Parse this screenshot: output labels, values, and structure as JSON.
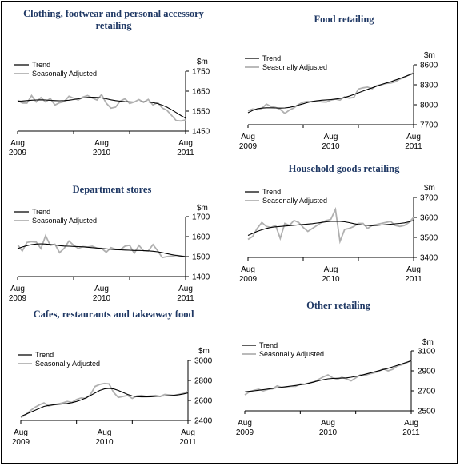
{
  "legend": {
    "trend": "Trend",
    "sa": "Seasonally Adjusted"
  },
  "colors": {
    "trend": "#000000",
    "sa": "#b0b0b0",
    "title": "#1f3864"
  },
  "chart_data": [
    {
      "type": "line",
      "title_lines": [
        "Clothing, footwear and personal accessory",
        "retailing"
      ],
      "unit": "$m",
      "ylim": [
        1450,
        1750
      ],
      "yticks": [
        1450,
        1550,
        1650,
        1750
      ],
      "xticks": [
        {
          "line1": "Aug",
          "line2": "2009"
        },
        {
          "line1": "Aug",
          "line2": "2010"
        },
        {
          "line1": "Aug",
          "line2": "2011"
        }
      ],
      "series": [
        {
          "name": "Trend",
          "values": [
            1600,
            1601,
            1603,
            1605,
            1606,
            1607,
            1606,
            1604,
            1603,
            1602,
            1603,
            1605,
            1608,
            1612,
            1616,
            1619,
            1620,
            1619,
            1616,
            1612,
            1607,
            1603,
            1600,
            1598,
            1597,
            1596,
            1596,
            1597,
            1596,
            1593,
            1588,
            1580,
            1570,
            1557,
            1543,
            1528,
            1515
          ]
        },
        {
          "name": "Seasonally Adjusted",
          "values": [
            1605,
            1591,
            1590,
            1628,
            1596,
            1618,
            1596,
            1614,
            1581,
            1592,
            1598,
            1625,
            1615,
            1606,
            1621,
            1628,
            1616,
            1606,
            1633,
            1590,
            1565,
            1570,
            1601,
            1612,
            1589,
            1596,
            1608,
            1594,
            1609,
            1581,
            1593,
            1566,
            1554,
            1529,
            1503,
            1501,
            1506
          ]
        }
      ]
    },
    {
      "type": "line",
      "title_lines": [
        "Food retailing"
      ],
      "unit": "$m",
      "ylim": [
        7700,
        8600
      ],
      "yticks": [
        7700,
        8000,
        8300,
        8600
      ],
      "xticks": [
        {
          "line1": "Aug",
          "line2": "2009"
        },
        {
          "line1": "Aug",
          "line2": "2010"
        },
        {
          "line1": "Aug",
          "line2": "2011"
        }
      ],
      "series": [
        {
          "name": "Trend",
          "values": [
            7880,
            7915,
            7940,
            7950,
            7955,
            7955,
            7952,
            7950,
            7952,
            7960,
            7975,
            7995,
            8015,
            8035,
            8050,
            8060,
            8068,
            8073,
            8078,
            8085,
            8095,
            8110,
            8130,
            8155,
            8180,
            8205,
            8230,
            8255,
            8280,
            8305,
            8325,
            8345,
            8370,
            8395,
            8420,
            8445,
            8470
          ]
        },
        {
          "name": "Seasonally Adjusted",
          "values": [
            7910,
            7935,
            7925,
            7945,
            8010,
            7975,
            7960,
            7930,
            7870,
            7920,
            7955,
            8005,
            8040,
            8050,
            8045,
            8060,
            8045,
            8040,
            8070,
            8085,
            8070,
            8120,
            8100,
            8110,
            8235,
            8255,
            8265,
            8240,
            8290,
            8300,
            8320,
            8325,
            8345,
            8385,
            8410,
            8450,
            8480
          ]
        }
      ]
    },
    {
      "type": "line",
      "title_lines": [
        "Department stores"
      ],
      "unit": "$m",
      "ylim": [
        1400,
        1700
      ],
      "yticks": [
        1400,
        1500,
        1600,
        1700
      ],
      "xticks": [
        {
          "line1": "Aug",
          "line2": "2009"
        },
        {
          "line1": "Aug",
          "line2": "2010"
        },
        {
          "line1": "Aug",
          "line2": "2011"
        }
      ],
      "series": [
        {
          "name": "Trend",
          "values": [
            1540,
            1548,
            1555,
            1560,
            1563,
            1564,
            1563,
            1561,
            1558,
            1555,
            1553,
            1552,
            1551,
            1550,
            1549,
            1547,
            1545,
            1543,
            1541,
            1539,
            1537,
            1535,
            1534,
            1533,
            1532,
            1531,
            1531,
            1530,
            1529,
            1527,
            1524,
            1520,
            1515,
            1510,
            1506,
            1503,
            1500
          ]
        },
        {
          "name": "Seasonally Adjusted",
          "values": [
            1560,
            1528,
            1571,
            1575,
            1573,
            1540,
            1605,
            1556,
            1562,
            1520,
            1542,
            1578,
            1557,
            1541,
            1550,
            1548,
            1552,
            1542,
            1541,
            1522,
            1545,
            1537,
            1535,
            1552,
            1557,
            1517,
            1556,
            1529,
            1528,
            1560,
            1530,
            1495,
            1500,
            1503,
            1506,
            1503,
            1500
          ]
        }
      ]
    },
    {
      "type": "line",
      "title_lines": [
        "Household goods retailing"
      ],
      "unit": "$m",
      "ylim": [
        3400,
        3700
      ],
      "yticks": [
        3400,
        3500,
        3600,
        3700
      ],
      "xticks": [
        {
          "line1": "Aug",
          "line2": "2009"
        },
        {
          "line1": "Aug",
          "line2": "2010"
        },
        {
          "line1": "Aug",
          "line2": "2011"
        }
      ],
      "series": [
        {
          "name": "Trend",
          "values": [
            3510,
            3520,
            3530,
            3538,
            3545,
            3550,
            3553,
            3555,
            3557,
            3559,
            3561,
            3563,
            3565,
            3567,
            3569,
            3572,
            3575,
            3578,
            3580,
            3581,
            3580,
            3578,
            3574,
            3569,
            3565,
            3562,
            3560,
            3559,
            3560,
            3562,
            3564,
            3566,
            3568,
            3570,
            3573,
            3578,
            3585
          ]
        },
        {
          "name": "Seasonally Adjusted",
          "values": [
            3490,
            3505,
            3545,
            3575,
            3555,
            3550,
            3560,
            3495,
            3570,
            3560,
            3585,
            3575,
            3550,
            3530,
            3545,
            3560,
            3575,
            3585,
            3590,
            3640,
            3480,
            3540,
            3545,
            3555,
            3570,
            3570,
            3545,
            3560,
            3565,
            3570,
            3575,
            3580,
            3560,
            3555,
            3560,
            3575,
            3600
          ]
        }
      ]
    },
    {
      "type": "line",
      "title_lines": [
        "Cafes, restaurants and takeaway food"
      ],
      "unit": "$m",
      "ylim": [
        2400,
        3000
      ],
      "yticks": [
        2400,
        2600,
        2800,
        3000
      ],
      "xticks": [
        {
          "line1": "Aug",
          "line2": "2009"
        },
        {
          "line1": "Aug",
          "line2": "2010"
        },
        {
          "line1": "Aug",
          "line2": "2011"
        }
      ],
      "series": [
        {
          "name": "Trend",
          "values": [
            2440,
            2460,
            2480,
            2500,
            2520,
            2540,
            2550,
            2556,
            2560,
            2565,
            2570,
            2578,
            2590,
            2605,
            2625,
            2650,
            2675,
            2700,
            2715,
            2720,
            2715,
            2700,
            2680,
            2660,
            2645,
            2638,
            2635,
            2635,
            2637,
            2640,
            2643,
            2645,
            2648,
            2652,
            2657,
            2665,
            2675
          ]
        },
        {
          "name": "Seasonally Adjusted",
          "values": [
            2430,
            2455,
            2495,
            2530,
            2555,
            2575,
            2545,
            2555,
            2565,
            2575,
            2590,
            2580,
            2610,
            2625,
            2620,
            2660,
            2740,
            2760,
            2770,
            2765,
            2680,
            2630,
            2640,
            2650,
            2620,
            2645,
            2650,
            2640,
            2645,
            2650,
            2640,
            2660,
            2655,
            2650,
            2660,
            2670,
            2690
          ]
        }
      ]
    },
    {
      "type": "line",
      "title_lines": [
        "Other retailing"
      ],
      "unit": "$m",
      "ylim": [
        2500,
        3100
      ],
      "yticks": [
        2500,
        2700,
        2900,
        3100
      ],
      "xticks": [
        {
          "line1": "Aug",
          "line2": "2009"
        },
        {
          "line1": "Aug",
          "line2": "2010"
        },
        {
          "line1": "Aug",
          "line2": "2011"
        }
      ],
      "series": [
        {
          "name": "Trend",
          "values": [
            2690,
            2695,
            2700,
            2706,
            2712,
            2718,
            2724,
            2730,
            2736,
            2742,
            2748,
            2754,
            2760,
            2768,
            2778,
            2790,
            2802,
            2812,
            2820,
            2824,
            2826,
            2827,
            2830,
            2836,
            2844,
            2854,
            2866,
            2878,
            2890,
            2902,
            2914,
            2926,
            2940,
            2955,
            2970,
            2985,
            3000
          ]
        },
        {
          "name": "Seasonally Adjusted",
          "values": [
            2660,
            2690,
            2705,
            2715,
            2700,
            2715,
            2720,
            2750,
            2735,
            2740,
            2745,
            2745,
            2770,
            2765,
            2780,
            2790,
            2815,
            2840,
            2860,
            2830,
            2815,
            2835,
            2820,
            2800,
            2830,
            2860,
            2855,
            2870,
            2880,
            2895,
            2920,
            2900,
            2915,
            2950,
            2960,
            2980,
            3005
          ]
        }
      ]
    }
  ]
}
